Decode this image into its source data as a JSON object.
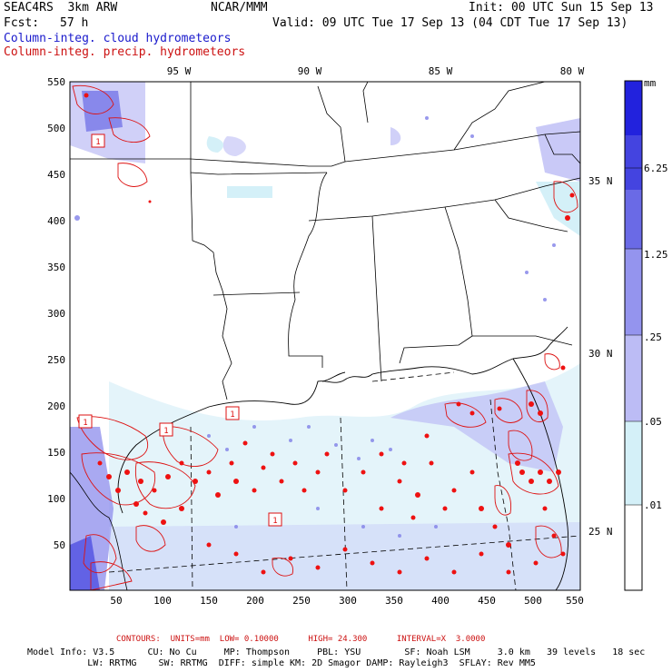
{
  "header": {
    "model": "SEAC4RS  3km ARW",
    "center": "NCAR/MMM",
    "init": "Init: 00 UTC Sun 15 Sep 13",
    "fcst_label": "Fcst:",
    "fcst_value": "57 h",
    "valid": "Valid: 09 UTC Tue 17 Sep 13 (04 CDT Tue 17 Sep 13)",
    "field1": "Column-integ. cloud hydrometeors",
    "field2": "Column-integ. precip. hydrometeors"
  },
  "map": {
    "lon_labels": [
      "95 W",
      "90 W",
      "85 W",
      "80 W"
    ],
    "lat_labels": [
      "35 N",
      "30 N",
      "25 N"
    ],
    "x_ticks": [
      "50",
      "100",
      "150",
      "200",
      "250",
      "300",
      "350",
      "400",
      "450",
      "500",
      "550"
    ],
    "y_ticks": [
      "550",
      "500",
      "450",
      "400",
      "350",
      "300",
      "250",
      "200",
      "150",
      "100",
      "50"
    ],
    "contour_labels": [
      "1",
      "1",
      "1",
      "1",
      "1"
    ]
  },
  "colorbar": {
    "unit": "mm",
    "levels": [
      "6.25",
      "1.25",
      ".25",
      ".05",
      ".01"
    ],
    "colors": [
      "#2222dd",
      "#4444e0",
      "#6a6ae6",
      "#9494ee",
      "#bcbcf5",
      "#d4f0f8",
      "#ffffff"
    ]
  },
  "footer": {
    "contours": "CONTOURS:  UNITS=mm  LOW= 0.10000      HIGH= 24.300      INTERVAL=X  3.0000",
    "line1": "Model Info: V3.5      CU: No Cu     MP: Thompson     PBL: YSU        SF: Noah LSM     3.0 km   39 levels   18 sec",
    "line2": "           LW: RRTMG    SW: RRTMG  DIFF: simple KM: 2D Smagor DAMP: Rayleigh3  SFLAY: Rev MM5"
  }
}
